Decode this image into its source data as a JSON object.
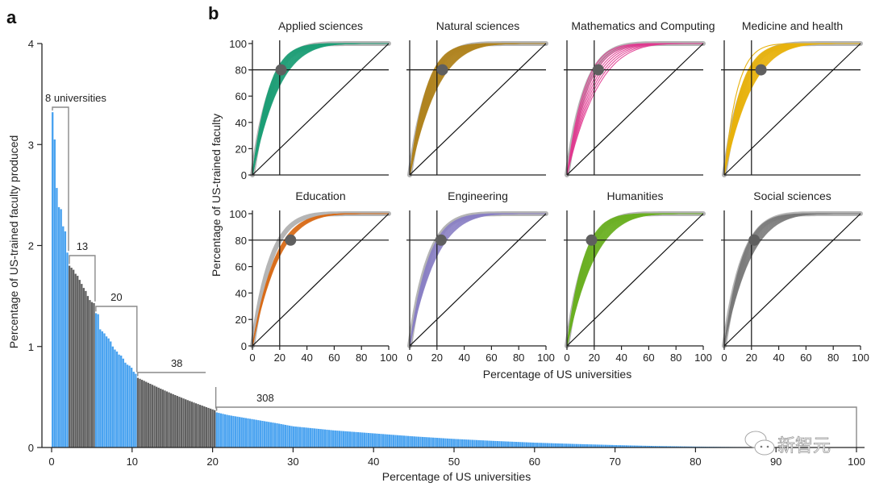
{
  "figure": {
    "panel_a_letter": "a",
    "panel_b_letter": "b",
    "watermark_text": "新智元"
  },
  "chart_data": [
    {
      "id": "panel-a",
      "type": "bar",
      "title": "",
      "xlabel": "Percentage of US universities",
      "ylabel": "Percentage of US-trained faculty produced",
      "xlim": [
        0,
        100
      ],
      "ylim": [
        0,
        4
      ],
      "xticks": [
        0,
        10,
        20,
        30,
        40,
        50,
        60,
        70,
        80,
        90,
        100
      ],
      "yticks": [
        0,
        1,
        2,
        3,
        4
      ],
      "grid": false,
      "n_universities": 387,
      "colors": {
        "blue": "#4aa3f0",
        "grey": "#606060",
        "bracket": "#8a8a8a"
      },
      "groups": [
        {
          "label": "8 universities",
          "count": 8,
          "color": "blue",
          "x_start": 0,
          "x_end": 2.1,
          "values": [
            3.32,
            3.05,
            2.57,
            2.38,
            2.36,
            2.19,
            2.14,
            1.93
          ]
        },
        {
          "label": "13",
          "count": 13,
          "color": "grey",
          "x_start": 2.1,
          "x_end": 5.4,
          "values": [
            1.8,
            1.78,
            1.76,
            1.72,
            1.7,
            1.66,
            1.62,
            1.58,
            1.55,
            1.5,
            1.46,
            1.44,
            1.43
          ]
        },
        {
          "label": "20",
          "count": 20,
          "color": "blue",
          "x_start": 5.4,
          "x_end": 10.6,
          "values": [
            1.33,
            1.32,
            1.17,
            1.15,
            1.13,
            1.1,
            1.08,
            1.05,
            1.0,
            0.97,
            0.95,
            0.92,
            0.91,
            0.88,
            0.84,
            0.82,
            0.81,
            0.79,
            0.75,
            0.73
          ]
        },
        {
          "label": "38",
          "count": 38,
          "color": "grey",
          "x_start": 10.6,
          "x_end": 20.4,
          "value_start": 0.69,
          "value_end": 0.37
        },
        {
          "label": "308",
          "count": 308,
          "color": "blue",
          "x_start": 20.4,
          "x_end": 100,
          "profile": [
            [
              20.4,
              0.35
            ],
            [
              22,
              0.32
            ],
            [
              25,
              0.28
            ],
            [
              28,
              0.24
            ],
            [
              30,
              0.21
            ],
            [
              35,
              0.17
            ],
            [
              40,
              0.14
            ],
            [
              45,
              0.11
            ],
            [
              50,
              0.085
            ],
            [
              55,
              0.065
            ],
            [
              60,
              0.048
            ],
            [
              65,
              0.035
            ],
            [
              70,
              0.024
            ],
            [
              75,
              0.015
            ],
            [
              80,
              0.009
            ],
            [
              85,
              0.005
            ],
            [
              90,
              0.003
            ],
            [
              95,
              0.0015
            ],
            [
              100,
              0.0
            ]
          ]
        }
      ]
    },
    {
      "id": "panel-b",
      "type": "line",
      "xlabel": "Percentage of US universities",
      "ylabel": "Percentage of US-trained faculty",
      "xlim": [
        0,
        100
      ],
      "ylim": [
        0,
        100
      ],
      "xticks": [
        0,
        20,
        40,
        60,
        80,
        100
      ],
      "yticks": [
        0,
        20,
        40,
        60,
        80,
        100
      ],
      "reference_lines": {
        "horizontal_y": 80,
        "vertical_x": 20,
        "diagonal": "equality"
      },
      "aggregate_color": "#b5b5b5",
      "marker_color": "#5f5f5f",
      "panels": [
        {
          "title": "Applied sciences",
          "color": "#1e9e77",
          "marker": [
            21,
            80
          ],
          "n_lines": 20,
          "conc_min": 0.68,
          "conc_max": 0.84,
          "outlier_conc": null
        },
        {
          "title": "Natural sciences",
          "color": "#b08420",
          "marker": [
            24,
            80
          ],
          "n_lines": 26,
          "conc_min": 0.66,
          "conc_max": 0.84,
          "outlier_conc": null
        },
        {
          "title": "Mathematics and Computing",
          "color": "#e0388f",
          "marker": [
            23,
            80
          ],
          "n_lines": 8,
          "conc_min": 0.62,
          "conc_max": 0.82,
          "outlier_conc": null
        },
        {
          "title": "Medicine and health",
          "color": "#e8b20e",
          "marker": [
            27,
            80
          ],
          "n_lines": 22,
          "conc_min": 0.66,
          "conc_max": 0.84,
          "outlier_conc": 0.9
        },
        {
          "title": "Education",
          "color": "#d86c18",
          "marker": [
            28,
            80
          ],
          "n_lines": 8,
          "conc_min": 0.68,
          "conc_max": 0.74,
          "outlier_conc": null
        },
        {
          "title": "Engineering",
          "color": "#8a80c4",
          "marker": [
            23,
            80
          ],
          "n_lines": 12,
          "conc_min": 0.68,
          "conc_max": 0.8,
          "outlier_conc": null
        },
        {
          "title": "Humanities",
          "color": "#6bb024",
          "marker": [
            18,
            80
          ],
          "n_lines": 24,
          "conc_min": 0.66,
          "conc_max": 0.84,
          "outlier_conc": null
        },
        {
          "title": "Social sciences",
          "color": "#7a7a7a",
          "marker": [
            22,
            80
          ],
          "n_lines": 14,
          "conc_min": 0.68,
          "conc_max": 0.82,
          "outlier_conc": null
        }
      ]
    }
  ]
}
